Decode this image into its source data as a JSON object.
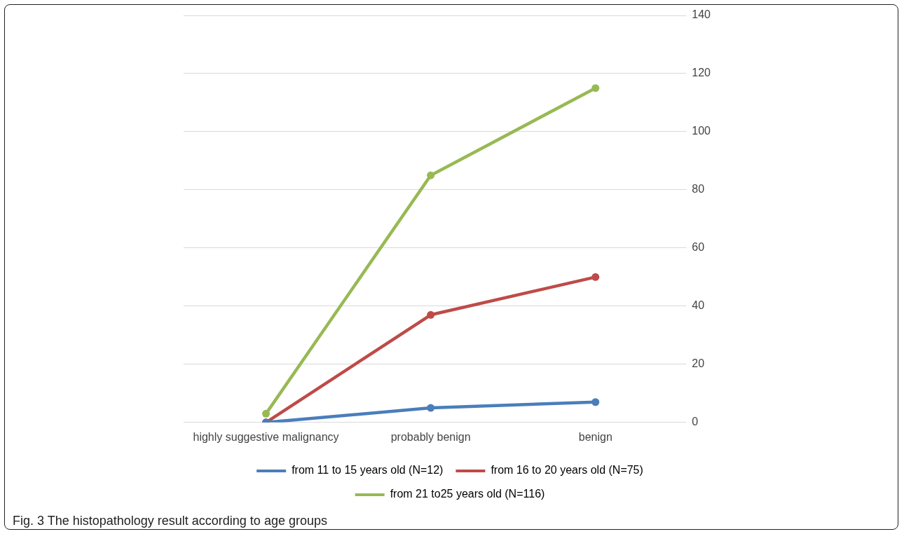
{
  "chart_data": {
    "type": "line",
    "categories": [
      "highly suggestive malignancy",
      "probably benign",
      "benign"
    ],
    "series": [
      {
        "name": "from 11 to 15 years old (N=12)",
        "color": "#4a7ebb",
        "values": [
          0,
          5,
          7
        ]
      },
      {
        "name": "from 16 to 20 years old (N=75)",
        "color": "#be4b48",
        "values": [
          0,
          37,
          50
        ]
      },
      {
        "name": "from 21 to25 years old (N=116)",
        "color": "#98b954",
        "values": [
          3,
          85,
          115
        ]
      }
    ],
    "ylim": [
      0,
      140
    ],
    "yticks": [
      0,
      20,
      40,
      60,
      80,
      100,
      120,
      140
    ],
    "grid": "y",
    "legend": "bottom",
    "marker": "circle",
    "line_style": "solid",
    "annotations": [
      "Fig. 3 The histopathology result according to age groups"
    ]
  }
}
